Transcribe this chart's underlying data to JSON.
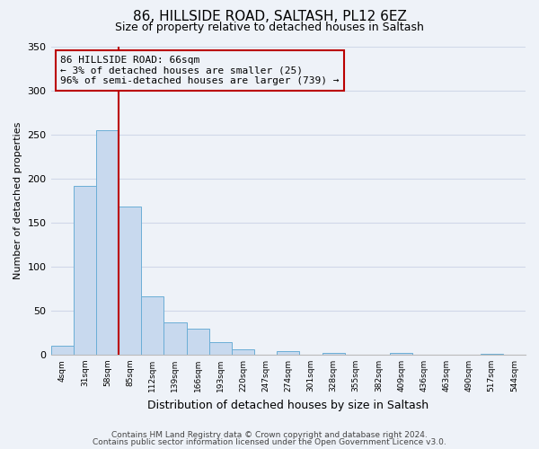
{
  "title": "86, HILLSIDE ROAD, SALTASH, PL12 6EZ",
  "subtitle": "Size of property relative to detached houses in Saltash",
  "xlabel": "Distribution of detached houses by size in Saltash",
  "ylabel": "Number of detached properties",
  "bar_color": "#c8d9ee",
  "bar_edge_color": "#6baed6",
  "grid_color": "#d0d8e8",
  "bg_color": "#eef2f8",
  "bin_labels": [
    "4sqm",
    "31sqm",
    "58sqm",
    "85sqm",
    "112sqm",
    "139sqm",
    "166sqm",
    "193sqm",
    "220sqm",
    "247sqm",
    "274sqm",
    "301sqm",
    "328sqm",
    "355sqm",
    "382sqm",
    "409sqm",
    "436sqm",
    "463sqm",
    "490sqm",
    "517sqm",
    "544sqm"
  ],
  "bar_values": [
    10,
    192,
    255,
    168,
    66,
    37,
    29,
    14,
    6,
    0,
    4,
    0,
    2,
    0,
    0,
    2,
    0,
    0,
    0,
    1,
    0
  ],
  "ylim": [
    0,
    350
  ],
  "yticks": [
    0,
    50,
    100,
    150,
    200,
    250,
    300,
    350
  ],
  "marker_label_line1": "86 HILLSIDE ROAD: 66sqm",
  "marker_label_line2": "← 3% of detached houses are smaller (25)",
  "marker_label_line3": "96% of semi-detached houses are larger (739) →",
  "footer_line1": "Contains HM Land Registry data © Crown copyright and database right 2024.",
  "footer_line2": "Contains public sector information licensed under the Open Government Licence v3.0.",
  "red_line_color": "#bb0000",
  "annotation_box_edge": "#bb0000"
}
